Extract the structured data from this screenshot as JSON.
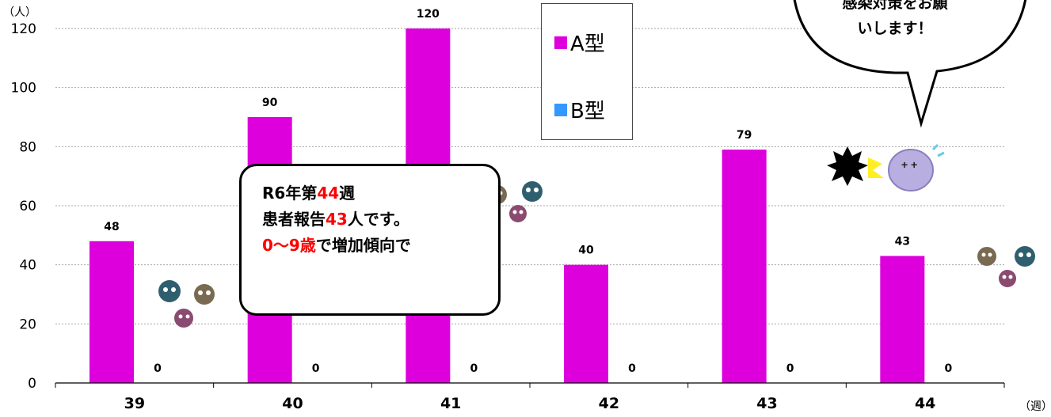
{
  "chart_data": {
    "type": "bar",
    "categories": [
      "39",
      "40",
      "41",
      "42",
      "43",
      "44"
    ],
    "series": [
      {
        "name": "A型",
        "color": "#dd00dd",
        "values": [
          48,
          90,
          120,
          40,
          79,
          43
        ]
      },
      {
        "name": "B型",
        "color": "#3399ff",
        "values": [
          0,
          0,
          0,
          0,
          0,
          0
        ]
      }
    ],
    "data_labels": {
      "a": [
        "48",
        "90",
        "120",
        "40",
        "79",
        "43"
      ],
      "b": [
        "0",
        "0",
        "0",
        "0",
        "0",
        "0"
      ]
    },
    "highlight_color": "#ff0000",
    "highlight_index": 5,
    "yticks": [
      "0",
      "20",
      "40",
      "60",
      "80",
      "100",
      "120"
    ],
    "ylim": [
      0,
      120
    ],
    "ylabel": "（人）",
    "xlabel": "（週）",
    "legend_position": "top-center"
  },
  "note": {
    "line1_pre": "R6年第",
    "line1_red": "44",
    "line1_post": "週",
    "line2_pre": "患者報告",
    "line2_red": "43",
    "line2_post": "人です。",
    "line3_red": "0〜9歳",
    "line3_post": "で増加傾向で"
  },
  "bubble": {
    "line1": "感染対策をお願",
    "line2": "いします！"
  }
}
